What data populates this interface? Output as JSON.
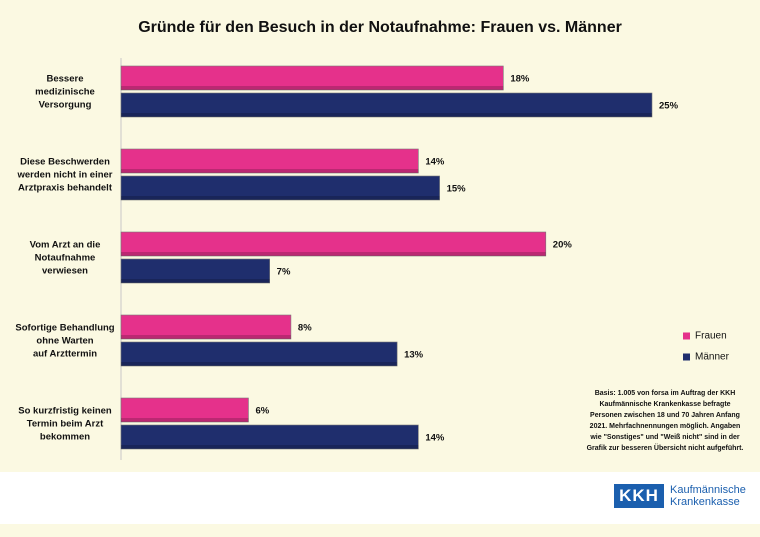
{
  "chart_data": {
    "type": "bar",
    "orientation": "horizontal",
    "title": "Gründe für den Besuch in der Notaufnahme: Frauen vs. Männer",
    "categories": [
      "Bessere\nmedizinische\nVersorgung",
      "Diese Beschwerden\nwerden nicht in einer\nArztpraxis behandelt",
      "Vom Arzt an die\nNotaufnahme\nverwiesen",
      "Sofortige Behandlung\nohne Warten\nauf Arzttermin",
      "So kurzfristig keinen\nTermin beim Arzt\nbekommen"
    ],
    "series": [
      {
        "name": "Frauen",
        "color": "#e5318b",
        "values": [
          18,
          14,
          20,
          8,
          6
        ],
        "value_labels": [
          "18%",
          "14%",
          "20%",
          "8%",
          "6%"
        ]
      },
      {
        "name": "Männer",
        "color": "#1f2e6d",
        "values": [
          25,
          15,
          7,
          13,
          14
        ],
        "value_labels": [
          "25%",
          "15%",
          "7%",
          "13%",
          "14%"
        ]
      }
    ],
    "legend": "right",
    "note": "Basis: 1.005 von forsa im Auftrag der KKH\nKaufmännische Krankenkasse befragte\nPersonen zwischen 18 und 70 Jahren Anfang\n2021. Mehrfachnennungen möglich. Angaben\nwie \"Sonstiges\" und \"Weiß nicht\" sind in der\nGrafik zur besseren Übersicht nicht aufgeführt."
  },
  "footer": {
    "logo_mark": "KKH",
    "logo_name": "Kaufmännische\nKrankenkasse"
  }
}
